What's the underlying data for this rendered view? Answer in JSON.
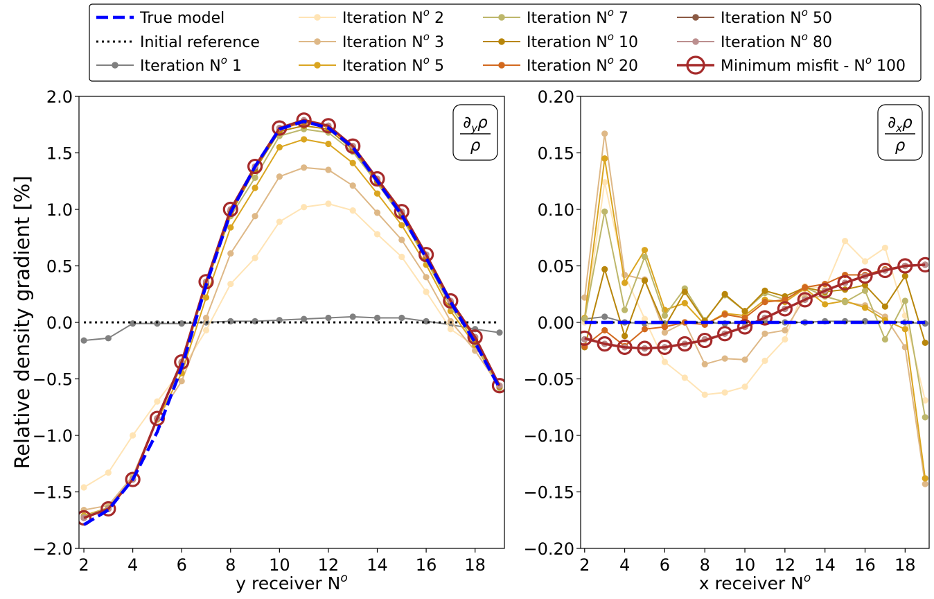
{
  "legend": {
    "placement": "top, outside plots, 4 columns",
    "entries": [
      {
        "label": "True model",
        "series": "true"
      },
      {
        "label": "Initial reference",
        "series": "init"
      },
      {
        "label": "Iteration N",
        "sup": "o",
        "num": " 1",
        "series": "it1"
      },
      {
        "label": "Iteration N",
        "sup": "o",
        "num": " 2",
        "series": "it2"
      },
      {
        "label": "Iteration N",
        "sup": "o",
        "num": " 3",
        "series": "it3"
      },
      {
        "label": "Iteration N",
        "sup": "o",
        "num": " 5",
        "series": "it5"
      },
      {
        "label": "Iteration N",
        "sup": "o",
        "num": " 7",
        "series": "it7"
      },
      {
        "label": "Iteration N",
        "sup": "o",
        "num": " 10",
        "series": "it10"
      },
      {
        "label": "Iteration N",
        "sup": "o",
        "num": " 20",
        "series": "it20"
      },
      {
        "label": "Iteration N",
        "sup": "o",
        "num": " 50",
        "series": "it50"
      },
      {
        "label": "Iteration N",
        "sup": "o",
        "num": " 80",
        "series": "it80"
      },
      {
        "label": "Minimum misfit - N",
        "sup": "o",
        "num": " 100",
        "series": "min"
      }
    ]
  },
  "series_style": {
    "true": {
      "color": "#0000ff",
      "style": "dashed"
    },
    "init": {
      "color": "#000000",
      "style": "dotted"
    },
    "it1": {
      "color": "#808080",
      "style": "line-dot"
    },
    "it2": {
      "color": "#ffe4b5",
      "style": "line-dot"
    },
    "it3": {
      "color": "#deb887",
      "style": "line-dot"
    },
    "it5": {
      "color": "#daa520",
      "style": "line-dot"
    },
    "it7": {
      "color": "#bdb76b",
      "style": "line-dot"
    },
    "it10": {
      "color": "#b8860b",
      "style": "line-dot"
    },
    "it20": {
      "color": "#d2691e",
      "style": "line-dot"
    },
    "it50": {
      "color": "#8b5a44",
      "style": "line-dot"
    },
    "it80": {
      "color": "#bc8f8f",
      "style": "line-dot"
    },
    "min": {
      "color": "#a52a2a",
      "style": "line-circle"
    }
  },
  "chart_data": [
    {
      "type": "line",
      "xlabel": "y receiver N",
      "xlabel_sup": "o",
      "ylabel": "Relative density gradient [%]",
      "annotation": {
        "numerator": "∂",
        "num_sub": "y",
        "num_rest": "ρ",
        "denominator": "ρ"
      },
      "xlim": [
        1.8,
        19.2
      ],
      "ylim": [
        -2.0,
        2.0
      ],
      "xticks": [
        2,
        4,
        6,
        8,
        10,
        12,
        14,
        16,
        18
      ],
      "yticks": [
        -2.0,
        -1.5,
        -1.0,
        -0.5,
        0.0,
        0.5,
        1.0,
        1.5,
        2.0
      ],
      "ytick_labels": [
        "−2.0",
        "−1.5",
        "−1.0",
        "−0.5",
        "0.0",
        "0.5",
        "1.0",
        "1.5",
        "2.0"
      ],
      "grid": false,
      "x": [
        2,
        3,
        4,
        5,
        6,
        7,
        8,
        9,
        10,
        11,
        12,
        13,
        14,
        15,
        16,
        17,
        18,
        19
      ],
      "series": [
        {
          "id": "true",
          "values": [
            -1.79,
            -1.66,
            -1.39,
            -0.97,
            -0.4,
            0.33,
            0.97,
            1.38,
            1.71,
            1.78,
            1.72,
            1.55,
            1.25,
            0.95,
            0.57,
            0.18,
            -0.18,
            -0.58
          ]
        },
        {
          "id": "init",
          "values": [
            0,
            0,
            0,
            0,
            0,
            0,
            0,
            0,
            0,
            0,
            0,
            0,
            0,
            0,
            0,
            0,
            0,
            0
          ]
        },
        {
          "id": "it1",
          "values": [
            -0.16,
            -0.14,
            -0.01,
            -0.01,
            -0.01,
            0.0,
            0.01,
            0.01,
            0.02,
            0.03,
            0.04,
            0.05,
            0.04,
            0.04,
            0.01,
            -0.02,
            -0.06,
            -0.09
          ]
        },
        {
          "id": "it2",
          "values": [
            -1.46,
            -1.33,
            -1.0,
            -0.7,
            -0.42,
            -0.07,
            0.34,
            0.57,
            0.89,
            1.02,
            1.05,
            0.99,
            0.78,
            0.58,
            0.27,
            -0.06,
            -0.21,
            -0.56
          ]
        },
        {
          "id": "it3",
          "values": [
            -1.66,
            -1.62,
            -1.36,
            -0.85,
            -0.52,
            0.04,
            0.61,
            0.94,
            1.29,
            1.37,
            1.35,
            1.21,
            0.97,
            0.73,
            0.4,
            0.01,
            -0.25,
            -0.57
          ]
        },
        {
          "id": "it5",
          "values": [
            -1.71,
            -1.64,
            -1.38,
            -0.86,
            -0.45,
            0.22,
            0.84,
            1.19,
            1.55,
            1.62,
            1.58,
            1.41,
            1.14,
            0.86,
            0.51,
            0.1,
            -0.2,
            -0.57
          ]
        },
        {
          "id": "it7",
          "values": [
            -1.72,
            -1.64,
            -1.38,
            -0.85,
            -0.38,
            0.33,
            0.94,
            1.28,
            1.65,
            1.71,
            1.68,
            1.51,
            1.23,
            0.93,
            0.55,
            0.14,
            -0.18,
            -0.58
          ]
        },
        {
          "id": "it10",
          "values": [
            -1.73,
            -1.65,
            -1.39,
            -0.85,
            -0.36,
            0.34,
            0.96,
            1.35,
            1.69,
            1.74,
            1.71,
            1.53,
            1.25,
            0.95,
            0.57,
            0.17,
            -0.15,
            -0.57
          ]
        },
        {
          "id": "it20",
          "values": [
            -1.73,
            -1.65,
            -1.39,
            -0.85,
            -0.35,
            0.35,
            0.98,
            1.37,
            1.71,
            1.77,
            1.73,
            1.55,
            1.26,
            0.97,
            0.59,
            0.18,
            -0.14,
            -0.56
          ]
        },
        {
          "id": "it50",
          "values": [
            -1.73,
            -1.65,
            -1.39,
            -0.85,
            -0.35,
            0.36,
            0.99,
            1.37,
            1.72,
            1.78,
            1.74,
            1.56,
            1.27,
            0.97,
            0.6,
            0.18,
            -0.13,
            -0.56
          ]
        },
        {
          "id": "it80",
          "values": [
            -1.73,
            -1.65,
            -1.39,
            -0.85,
            -0.35,
            0.36,
            1.0,
            1.38,
            1.72,
            1.79,
            1.74,
            1.56,
            1.27,
            0.98,
            0.6,
            0.19,
            -0.13,
            -0.56
          ]
        },
        {
          "id": "min",
          "values": [
            -1.73,
            -1.65,
            -1.39,
            -0.85,
            -0.35,
            0.36,
            1.0,
            1.38,
            1.72,
            1.79,
            1.74,
            1.56,
            1.27,
            0.98,
            0.6,
            0.19,
            -0.13,
            -0.56
          ]
        }
      ]
    },
    {
      "type": "line",
      "xlabel": "x receiver N",
      "xlabel_sup": "o",
      "ylabel": "",
      "annotation": {
        "numerator": "∂",
        "num_sub": "x",
        "num_rest": "ρ",
        "denominator": "ρ"
      },
      "xlim": [
        1.8,
        19.2
      ],
      "ylim": [
        -0.2,
        0.2
      ],
      "xticks": [
        2,
        4,
        6,
        8,
        10,
        12,
        14,
        16,
        18
      ],
      "yticks": [
        -0.2,
        -0.15,
        -0.1,
        -0.05,
        0.0,
        0.05,
        0.1,
        0.15,
        0.2
      ],
      "ytick_labels": [
        "−0.20",
        "−0.15",
        "−0.10",
        "−0.05",
        "0.00",
        "0.05",
        "0.10",
        "0.15",
        "0.20"
      ],
      "grid": false,
      "x": [
        2,
        3,
        4,
        5,
        6,
        7,
        8,
        9,
        10,
        11,
        12,
        13,
        14,
        15,
        16,
        17,
        18,
        19
      ],
      "series": [
        {
          "id": "true",
          "values": [
            0,
            0,
            0,
            0,
            0,
            0,
            0,
            0,
            0,
            0,
            0,
            0,
            0,
            0,
            0,
            0,
            0,
            0
          ]
        },
        {
          "id": "init",
          "values": [
            0,
            0,
            0,
            0,
            0,
            0,
            0,
            0,
            0,
            0,
            0,
            0,
            0,
            0,
            0,
            0,
            0,
            0
          ]
        },
        {
          "id": "it1",
          "values": [
            0.003,
            0.005,
            0.0,
            -0.001,
            -0.001,
            0.0,
            0.0,
            -0.001,
            0.0,
            0.0,
            0.0,
            0.0,
            0.001,
            0.001,
            0.001,
            0.001,
            0.0,
            -0.001
          ]
        },
        {
          "id": "it2",
          "values": [
            0.0,
            0.124,
            0.042,
            0.003,
            -0.035,
            -0.049,
            -0.064,
            -0.062,
            -0.057,
            -0.034,
            -0.015,
            0.032,
            0.03,
            0.072,
            0.054,
            0.066,
            0.006,
            -0.069
          ]
        },
        {
          "id": "it3",
          "values": [
            0.022,
            0.167,
            0.042,
            0.038,
            -0.009,
            0.0,
            -0.037,
            -0.032,
            -0.033,
            -0.01,
            -0.007,
            0.022,
            0.023,
            0.018,
            0.015,
            0.005,
            -0.022,
            -0.143
          ]
        },
        {
          "id": "it5",
          "values": [
            0.004,
            0.145,
            0.035,
            0.064,
            0.011,
            0.017,
            -0.002,
            0.008,
            0.006,
            0.02,
            0.018,
            0.03,
            0.016,
            0.019,
            0.013,
            0.002,
            -0.006,
            -0.138
          ]
        },
        {
          "id": "it7",
          "values": [
            0.003,
            0.098,
            0.011,
            0.058,
            0.006,
            0.03,
            0.002,
            0.024,
            0.01,
            0.026,
            0.02,
            0.031,
            0.023,
            0.018,
            0.028,
            -0.015,
            0.019,
            -0.084
          ]
        },
        {
          "id": "it10",
          "values": [
            -0.022,
            0.047,
            -0.012,
            0.037,
            -0.004,
            0.027,
            0.001,
            0.025,
            0.01,
            0.028,
            0.023,
            0.031,
            0.027,
            0.029,
            0.033,
            0.014,
            0.041,
            -0.018
          ]
        },
        {
          "id": "it20",
          "values": [
            -0.021,
            -0.007,
            -0.021,
            -0.006,
            -0.004,
            0.0,
            -0.002,
            0.007,
            0.004,
            0.018,
            0.02,
            0.031,
            0.034,
            0.042,
            0.042,
            0.047,
            0.05,
            0.051
          ]
        },
        {
          "id": "it50",
          "values": [
            -0.015,
            -0.019,
            -0.022,
            -0.023,
            -0.022,
            -0.019,
            -0.015,
            -0.01,
            -0.004,
            0.004,
            0.012,
            0.02,
            0.028,
            0.035,
            0.041,
            0.046,
            0.05,
            0.051
          ]
        },
        {
          "id": "it80",
          "values": [
            -0.015,
            -0.019,
            -0.022,
            -0.023,
            -0.022,
            -0.019,
            -0.015,
            -0.01,
            -0.004,
            0.004,
            0.012,
            0.02,
            0.028,
            0.035,
            0.041,
            0.046,
            0.05,
            0.051
          ]
        },
        {
          "id": "min",
          "values": [
            -0.014,
            -0.019,
            -0.022,
            -0.023,
            -0.022,
            -0.019,
            -0.016,
            -0.01,
            -0.004,
            0.004,
            0.012,
            0.02,
            0.028,
            0.035,
            0.041,
            0.046,
            0.05,
            0.051
          ]
        }
      ]
    }
  ]
}
